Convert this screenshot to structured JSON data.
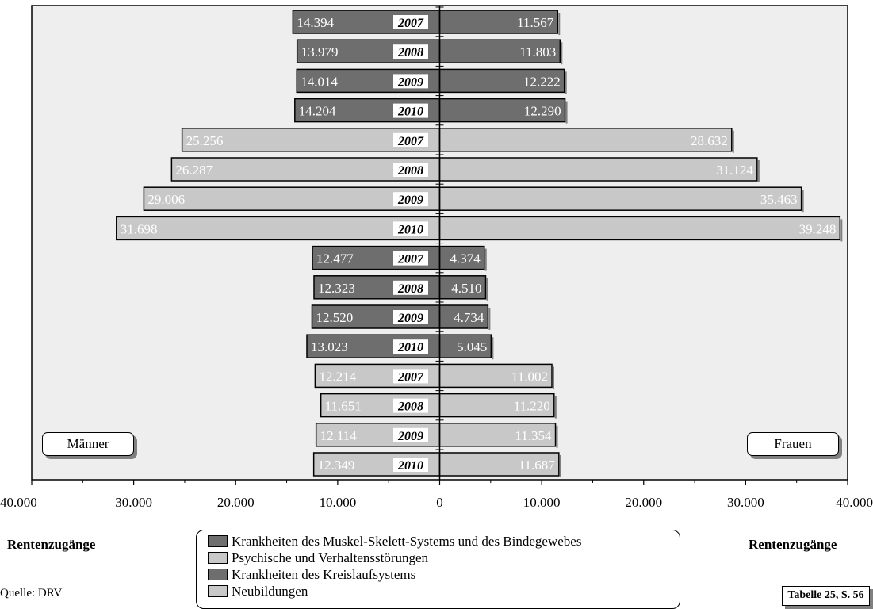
{
  "chart_data": {
    "type": "bar",
    "orientation": "horizontal-butterfly",
    "years": [
      "2007",
      "2008",
      "2009",
      "2010"
    ],
    "xlim": [
      -40000,
      40000
    ],
    "x_ticks": [
      "40.000",
      "30.000",
      "20.000",
      "10.000",
      "0",
      "10.000",
      "20.000",
      "30.000",
      "40.000"
    ],
    "groups": [
      {
        "category": "Krankheiten des Kreislaufsystems",
        "color": "#6e6e6e",
        "label_color": "#ffffff",
        "men": [
          14394,
          13979,
          14014,
          14204
        ],
        "women": [
          11567,
          11803,
          12222,
          12290
        ],
        "men_labels": [
          "14.394",
          "13.979",
          "14.014",
          "14.204"
        ],
        "women_labels": [
          "11.567",
          "11.803",
          "12.222",
          "12.290"
        ]
      },
      {
        "category": "Psychische und Verhaltensstörungen",
        "color": "#c8c8c8",
        "label_color": "#ffffff",
        "men": [
          25256,
          26287,
          29006,
          31698
        ],
        "women": [
          28632,
          31124,
          35463,
          39248
        ],
        "men_labels": [
          "25.256",
          "26.287",
          "29.006",
          "31.698"
        ],
        "women_labels": [
          "28.632",
          "31.124",
          "35.463",
          "39.248"
        ]
      },
      {
        "category": "Krankheiten des Muskel-Skelett-Systems und des Bindegewebes",
        "color": "#6e6e6e",
        "label_color": "#ffffff",
        "men": [
          12477,
          12323,
          12520,
          13023
        ],
        "women": [
          4374,
          4510,
          4734,
          5045
        ],
        "men_labels": [
          "12.477",
          "12.323",
          "12.520",
          "13.023"
        ],
        "women_labels": [
          "4.374",
          "4.510",
          "4.734",
          "5.045"
        ]
      },
      {
        "category": "Neubildungen",
        "color": "#c8c8c8",
        "label_color": "#ffffff",
        "men": [
          12214,
          11651,
          12114,
          12349
        ],
        "women": [
          11002,
          11220,
          11354,
          11687
        ],
        "men_labels": [
          "12.214",
          "11.651",
          "12.114",
          "12.349"
        ],
        "women_labels": [
          "11.002",
          "11.220",
          "11.354",
          "11.687"
        ]
      }
    ],
    "plot_background": "#eeeeee"
  },
  "labels": {
    "men_box": "Männer",
    "women_box": "Frauen",
    "left_footer": "Rentenzugänge",
    "right_footer": "Rentenzugänge",
    "source": "Quelle: DRV",
    "table_ref": "Tabelle 25, S. 56"
  },
  "legend": [
    {
      "label": "Krankheiten des Muskel-Skelett-Systems und des Bindegewebes",
      "color": "#6e6e6e"
    },
    {
      "label": "Psychische und Verhaltensstörungen",
      "color": "#c8c8c8"
    },
    {
      "label": "Krankheiten des Kreislaufsystems",
      "color": "#6e6e6e"
    },
    {
      "label": "Neubildungen",
      "color": "#c8c8c8"
    }
  ]
}
